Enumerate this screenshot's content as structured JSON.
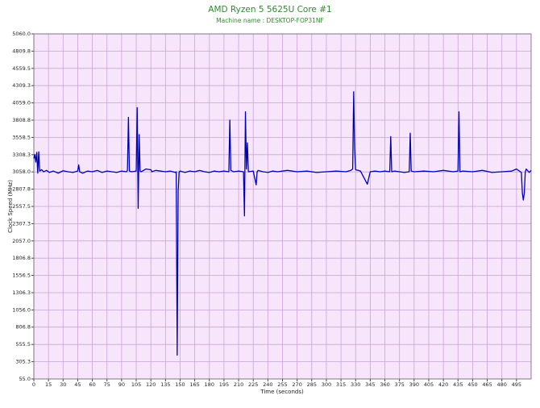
{
  "chart_data": {
    "type": "line",
    "title": "AMD Ryzen 5 5625U Core #1",
    "subtitle": "Machine name : DESKTOP-FOP31NF",
    "x_label": "Time (seconds)",
    "y_label": "Clock Speed (MHz)",
    "color": "#0000b4",
    "background": "#f7e6fb",
    "grid_color": "#c9a3d6",
    "grid": true,
    "xlim": [
      0,
      510
    ],
    "ylim": [
      55,
      5060
    ],
    "xticks": [
      0,
      15,
      30,
      45,
      60,
      75,
      90,
      105,
      120,
      135,
      150,
      165,
      180,
      195,
      210,
      225,
      240,
      255,
      270,
      285,
      300,
      315,
      330,
      345,
      360,
      375,
      390,
      405,
      420,
      435,
      450,
      465,
      480,
      495
    ],
    "yticks": [
      {
        "value": 55,
        "label": "55.0"
      },
      {
        "value": 305.3,
        "label": "305.3"
      },
      {
        "value": 555.5,
        "label": "555.5"
      },
      {
        "value": 806.8,
        "label": "806.8"
      },
      {
        "value": 1056,
        "label": "1056.0"
      },
      {
        "value": 1306.3,
        "label": "1306.3"
      },
      {
        "value": 1556.5,
        "label": "1556.5"
      },
      {
        "value": 1806.8,
        "label": "1806.8"
      },
      {
        "value": 2057,
        "label": "2057.0"
      },
      {
        "value": 2307.3,
        "label": "2307.3"
      },
      {
        "value": 2557.5,
        "label": "2557.5"
      },
      {
        "value": 2807.8,
        "label": "2807.8"
      },
      {
        "value": 3058,
        "label": "3058.0"
      },
      {
        "value": 3308.3,
        "label": "3308.3"
      },
      {
        "value": 3558.5,
        "label": "3558.5"
      },
      {
        "value": 3808.8,
        "label": "3808.8"
      },
      {
        "value": 4059,
        "label": "4059.0"
      },
      {
        "value": 4309.3,
        "label": "4309.3"
      },
      {
        "value": 4559.5,
        "label": "4559.5"
      },
      {
        "value": 4809.8,
        "label": "4809.8"
      },
      {
        "value": 5060,
        "label": "5060.0"
      }
    ],
    "x": [
      0,
      1,
      2,
      3,
      4,
      5,
      6,
      8,
      10,
      13,
      16,
      20,
      25,
      30,
      35,
      40,
      45,
      46,
      47,
      50,
      55,
      60,
      65,
      70,
      75,
      80,
      85,
      90,
      95,
      96,
      97,
      98,
      100,
      105,
      106,
      107,
      108,
      109,
      110,
      115,
      120,
      121,
      125,
      130,
      135,
      140,
      145,
      146,
      147,
      148,
      149,
      150,
      155,
      160,
      165,
      170,
      175,
      180,
      185,
      190,
      195,
      200,
      201,
      202,
      205,
      210,
      215,
      216,
      217,
      218,
      219,
      220,
      225,
      228,
      229,
      230,
      235,
      240,
      245,
      250,
      260,
      270,
      280,
      290,
      300,
      310,
      320,
      325,
      327,
      328,
      329,
      330,
      335,
      342,
      345,
      350,
      355,
      360,
      365,
      366,
      367,
      370,
      375,
      380,
      385,
      386,
      387,
      390,
      400,
      410,
      420,
      430,
      435,
      436,
      437,
      440,
      450,
      460,
      470,
      480,
      490,
      495,
      500,
      501,
      502,
      503,
      504,
      505,
      508,
      510
    ],
    "values": [
      3250,
      3310,
      3200,
      3340,
      3040,
      3350,
      3070,
      3090,
      3060,
      3080,
      3050,
      3070,
      3040,
      3075,
      3060,
      3050,
      3070,
      3160,
      3060,
      3040,
      3070,
      3060,
      3080,
      3050,
      3070,
      3060,
      3050,
      3070,
      3060,
      3080,
      3850,
      3070,
      3060,
      3070,
      3990,
      2530,
      3600,
      3070,
      3060,
      3100,
      3090,
      3060,
      3080,
      3070,
      3060,
      3070,
      3050,
      3060,
      400,
      2780,
      3060,
      3070,
      3050,
      3070,
      3060,
      3080,
      3060,
      3050,
      3070,
      3060,
      3070,
      3060,
      3810,
      3080,
      3060,
      3070,
      3060,
      2420,
      3930,
      3100,
      3480,
      3060,
      3070,
      2870,
      3060,
      3080,
      3060,
      3050,
      3070,
      3060,
      3080,
      3060,
      3070,
      3050,
      3060,
      3070,
      3060,
      3080,
      3100,
      4220,
      3400,
      3090,
      3070,
      2880,
      3060,
      3070,
      3060,
      3070,
      3060,
      3570,
      3060,
      3070,
      3060,
      3050,
      3060,
      3620,
      3070,
      3060,
      3070,
      3060,
      3080,
      3060,
      3070,
      3930,
      3060,
      3070,
      3060,
      3080,
      3050,
      3060,
      3070,
      3100,
      3050,
      2750,
      2650,
      2750,
      3060,
      3100,
      3050,
      3080
    ]
  }
}
